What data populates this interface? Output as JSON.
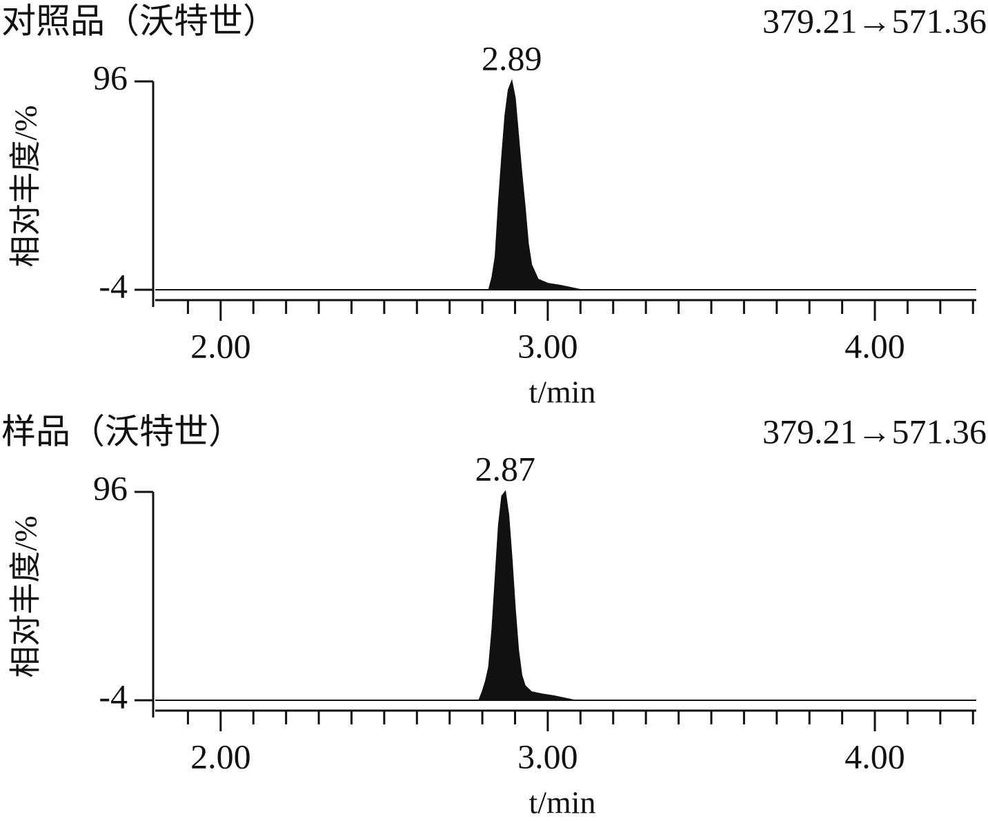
{
  "chart_data": [
    {
      "type": "area",
      "title": "对照品（沃特世）",
      "annotation": "379.21→571.36",
      "peak_label": {
        "text": "2.89",
        "x": 2.89
      },
      "y_label": "相对丰度/%",
      "x_label": "t/min",
      "color": "#111111",
      "x": [
        1.8,
        2.82,
        2.83,
        2.84,
        2.85,
        2.86,
        2.87,
        2.88,
        2.89,
        2.9,
        2.91,
        2.92,
        2.93,
        2.94,
        2.95,
        2.97,
        3.0,
        3.04,
        3.1,
        4.31
      ],
      "values": [
        -4,
        -4,
        2,
        12,
        38,
        60,
        80,
        92,
        96,
        88,
        70,
        52,
        36,
        18,
        8,
        1,
        -1,
        -2,
        -4,
        -4
      ],
      "xlim": [
        1.8,
        4.31
      ],
      "ylim": [
        -4,
        96
      ],
      "xticks": [
        {
          "value": 2,
          "label": "2.00"
        },
        {
          "value": 3,
          "label": "3.00"
        },
        {
          "value": 4,
          "label": "4.00"
        }
      ],
      "xminorticks": [
        1.9,
        2.1,
        2.2,
        2.3,
        2.4,
        2.5,
        2.6,
        2.7,
        2.8,
        2.9,
        3.1,
        3.2,
        3.3,
        3.4,
        3.5,
        3.6,
        3.7,
        3.8,
        3.9,
        4.1,
        4.2,
        4.3
      ],
      "yticks": [
        96,
        -4
      ],
      "grid": false
    },
    {
      "type": "area",
      "title": "样品（沃特世）",
      "annotation": "379.21→571.36",
      "peak_label": {
        "text": "2.87",
        "x": 2.87
      },
      "y_label": "相对丰度/%",
      "x_label": "t/min",
      "color": "#111111",
      "x": [
        1.8,
        2.79,
        2.8,
        2.81,
        2.82,
        2.83,
        2.84,
        2.85,
        2.86,
        2.87,
        2.88,
        2.89,
        2.9,
        2.91,
        2.92,
        2.93,
        2.95,
        2.98,
        3.02,
        3.08,
        4.31
      ],
      "values": [
        -4,
        -4,
        0,
        5,
        12,
        30,
        55,
        80,
        94,
        96,
        85,
        64,
        40,
        20,
        8,
        3,
        0,
        -1,
        -2,
        -4,
        -4
      ],
      "xlim": [
        1.8,
        4.31
      ],
      "ylim": [
        -4,
        96
      ],
      "xticks": [
        {
          "value": 2,
          "label": "2.00"
        },
        {
          "value": 3,
          "label": "3.00"
        },
        {
          "value": 4,
          "label": "4.00"
        }
      ],
      "xminorticks": [
        1.9,
        2.1,
        2.2,
        2.3,
        2.4,
        2.5,
        2.6,
        2.7,
        2.8,
        2.9,
        3.1,
        3.2,
        3.3,
        3.4,
        3.5,
        3.6,
        3.7,
        3.8,
        3.9,
        4.1,
        4.2,
        4.3
      ],
      "yticks": [
        96,
        -4
      ],
      "grid": false
    }
  ]
}
